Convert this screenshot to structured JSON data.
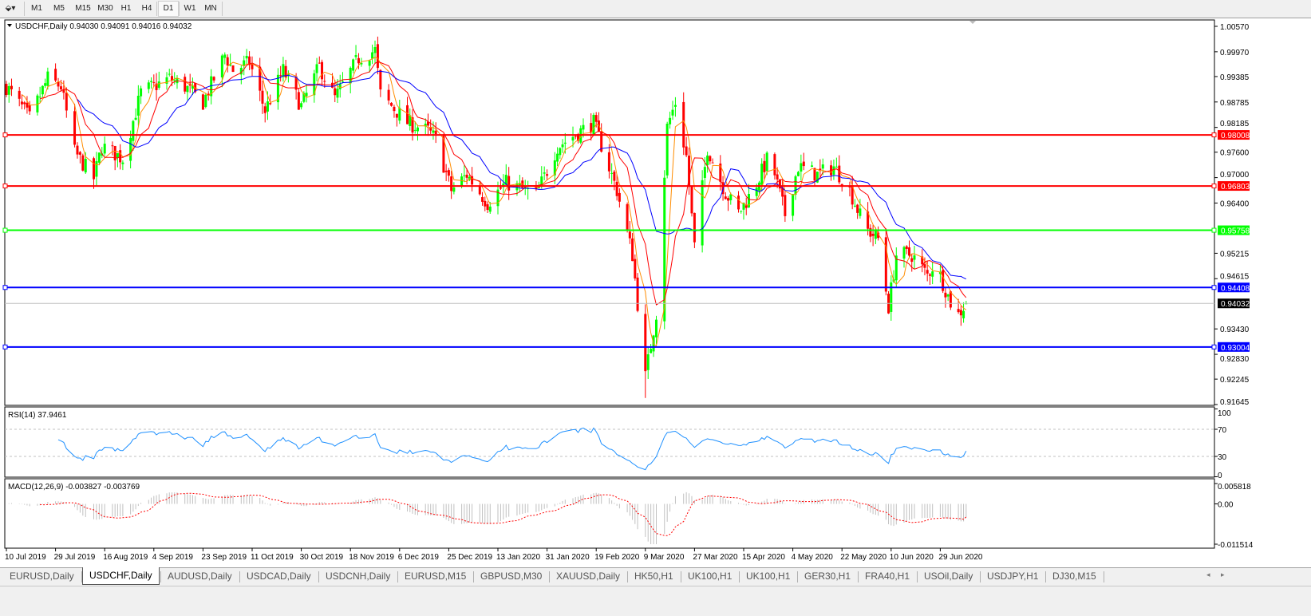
{
  "toolbar": {
    "timeframes": [
      "M1",
      "M5",
      "M15",
      "M30",
      "H1",
      "H4",
      "D1",
      "W1",
      "MN"
    ],
    "active_timeframe": "D1",
    "tool_icon": "crosshair-properties-icon"
  },
  "chart": {
    "header": "USDCHF,Daily  0.94030 0.94091 0.94016 0.94032",
    "rsi_label": "RSI(14) 37.9461",
    "macd_label": "MACD(12,26,9) -0.003827 -0.003769",
    "colors": {
      "bull": "#00ff00",
      "bear": "#ff0000",
      "ma_fast": "#ff8c00",
      "ma_mid": "#ff0000",
      "ma_slow": "#0000ff",
      "rsi": "#1e90ff",
      "macd_hist": "#c0c0c0",
      "macd_signal": "#ff0000"
    }
  },
  "chart_data": {
    "type": "candlestick",
    "symbol": "USDCHF",
    "timeframe": "Daily",
    "ohlc_last": {
      "open": 0.9403,
      "high": 0.94091,
      "low": 0.94016,
      "close": 0.94032
    },
    "price_ticks": [
      "1.00570",
      "0.99970",
      "0.99385",
      "0.98785",
      "0.98185",
      "0.97600",
      "0.97000",
      "0.96400",
      "0.95215",
      "0.94615",
      "0.93430",
      "0.92830",
      "0.92245",
      "0.91645"
    ],
    "price_range": [
      0.91645,
      1.0057
    ],
    "time_labels": [
      "10 Jul 2019",
      "29 Jul 2019",
      "16 Aug 2019",
      "4 Sep 2019",
      "23 Sep 2019",
      "11 Oct 2019",
      "30 Oct 2019",
      "18 Nov 2019",
      "6 Dec 2019",
      "25 Dec 2019",
      "13 Jan 2020",
      "31 Jan 2020",
      "19 Feb 2020",
      "9 Mar 2020",
      "27 Mar 2020",
      "15 Apr 2020",
      "4 May 2020",
      "22 May 2020",
      "10 Jun 2020",
      "29 Jun 2020"
    ],
    "time_label_dates": [
      "2019-07-10",
      "2019-07-29",
      "2019-08-16",
      "2019-09-04",
      "2019-09-23",
      "2019-10-11",
      "2019-10-30",
      "2019-11-18",
      "2019-12-06",
      "2019-12-25",
      "2020-01-13",
      "2020-01-31",
      "2020-02-19",
      "2020-03-09",
      "2020-03-27",
      "2020-04-15",
      "2020-05-04",
      "2020-05-22",
      "2020-06-10",
      "2020-06-29"
    ],
    "close_path": [
      [
        "2019-07-10",
        0.9915
      ],
      [
        "2019-07-19",
        0.984
      ],
      [
        "2019-07-26",
        0.9934
      ],
      [
        "2019-07-31",
        0.9915
      ],
      [
        "2019-08-05",
        0.976
      ],
      [
        "2019-08-12",
        0.9698
      ],
      [
        "2019-08-15",
        0.9774
      ],
      [
        "2019-08-23",
        0.9745
      ],
      [
        "2019-08-30",
        0.99
      ],
      [
        "2019-09-10",
        0.9934
      ],
      [
        "2019-09-16",
        0.9915
      ],
      [
        "2019-09-23",
        0.9877
      ],
      [
        "2019-10-01",
        0.999
      ],
      [
        "2019-10-04",
        0.9953
      ],
      [
        "2019-10-10",
        0.9972
      ],
      [
        "2019-10-16",
        0.9858
      ],
      [
        "2019-10-23",
        0.9953
      ],
      [
        "2019-10-30",
        0.9868
      ],
      [
        "2019-11-06",
        0.9963
      ],
      [
        "2019-11-12",
        0.9887
      ],
      [
        "2019-11-21",
        0.9982
      ],
      [
        "2019-11-27",
        1.0
      ],
      [
        "2019-11-29",
        0.9896
      ],
      [
        "2019-12-09",
        0.983
      ],
      [
        "2019-12-17",
        0.981
      ],
      [
        "2019-12-20",
        0.979
      ],
      [
        "2019-12-26",
        0.967
      ],
      [
        "2020-01-01",
        0.9707
      ],
      [
        "2020-01-09",
        0.964
      ],
      [
        "2020-01-16",
        0.9688
      ],
      [
        "2020-01-27",
        0.966
      ],
      [
        "2020-02-04",
        0.9773
      ],
      [
        "2020-02-18",
        0.983
      ],
      [
        "2020-02-27",
        0.967
      ],
      [
        "2020-03-04",
        0.9518
      ],
      [
        "2020-03-09",
        0.923
      ],
      [
        "2020-03-13",
        0.938
      ],
      [
        "2020-03-17",
        0.982
      ],
      [
        "2020-03-20",
        0.9877
      ],
      [
        "2020-03-24",
        0.975
      ],
      [
        "2020-03-27",
        0.9537
      ],
      [
        "2020-04-01",
        0.977
      ],
      [
        "2020-04-08",
        0.9664
      ],
      [
        "2020-04-13",
        0.9617
      ],
      [
        "2020-04-19",
        0.9673
      ],
      [
        "2020-04-25",
        0.9755
      ],
      [
        "2020-05-01",
        0.9613
      ],
      [
        "2020-05-06",
        0.9726
      ],
      [
        "2020-05-13",
        0.9707
      ],
      [
        "2020-05-19",
        0.9726
      ],
      [
        "2020-05-25",
        0.967
      ],
      [
        "2020-05-31",
        0.958
      ],
      [
        "2020-06-05",
        0.9556
      ],
      [
        "2020-06-09",
        0.9395
      ],
      [
        "2020-06-12",
        0.9518
      ],
      [
        "2020-06-18",
        0.9518
      ],
      [
        "2020-06-24",
        0.947
      ],
      [
        "2020-06-27",
        0.95
      ],
      [
        "2020-07-03",
        0.9405
      ],
      [
        "2020-07-06",
        0.9377
      ],
      [
        "2020-07-09",
        0.94032
      ]
    ],
    "horizontal_lines": [
      {
        "price": "0.98008",
        "color": "#ff0000"
      },
      {
        "price": "0.96803",
        "color": "#ff0000"
      },
      {
        "price": "0.95758",
        "color": "#00ff00"
      },
      {
        "price": "0.94408",
        "color": "#0000ff"
      },
      {
        "price": "0.93004",
        "color": "#0000ff"
      }
    ],
    "current_price": "0.94032",
    "moving_averages": [
      {
        "period": 5,
        "color": "#ff8c00"
      },
      {
        "period": 10,
        "color": "#ff0000"
      },
      {
        "period": 20,
        "color": "#0000ff"
      }
    ],
    "rsi": {
      "period": 14,
      "value": 37.9461,
      "ticks": [
        "100",
        "70",
        "30",
        "0"
      ],
      "levels": [
        70,
        30
      ]
    },
    "macd": {
      "fast": 12,
      "slow": 26,
      "signal": 9,
      "main": -0.003827,
      "signal_value": -0.003769,
      "ticks": [
        "0.005818",
        "0.00",
        "-0.011514"
      ],
      "range": [
        -0.011514,
        0.005818
      ]
    }
  },
  "tabs": {
    "items": [
      "EURUSD,Daily",
      "USDCHF,Daily",
      "AUDUSD,Daily",
      "USDCAD,Daily",
      "USDCNH,Daily",
      "EURUSD,M15",
      "GBPUSD,M30",
      "XAUUSD,Daily",
      "HK50,H1",
      "UK100,H1",
      "UK100,H1",
      "GER30,H1",
      "FRA40,H1",
      "USOil,Daily",
      "USDJPY,H1",
      "DJ30,M15"
    ],
    "active": "USDCHF,Daily"
  }
}
